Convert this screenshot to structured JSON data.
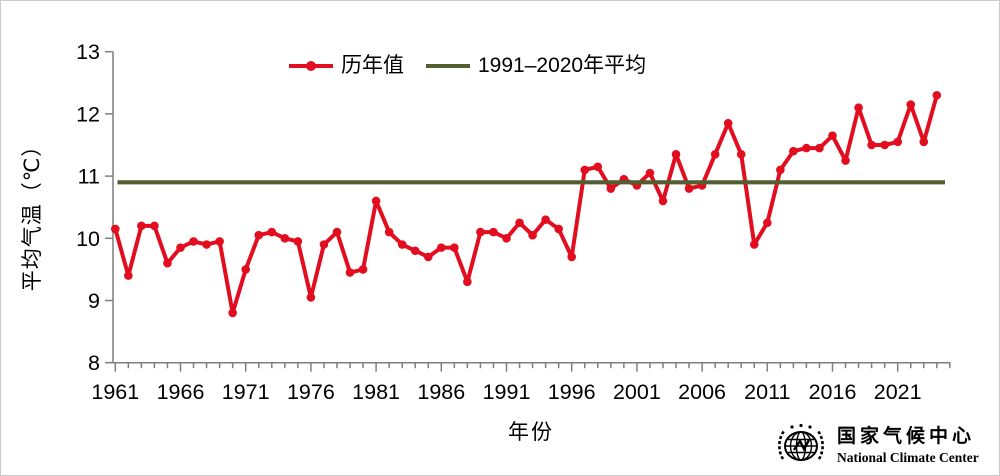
{
  "chart_data": {
    "type": "line",
    "title": "",
    "xlabel": "年份",
    "ylabel": "平均气温（℃）",
    "ylim": [
      8,
      13
    ],
    "yticks": [
      8,
      9,
      10,
      11,
      12,
      13
    ],
    "xticks": [
      1961,
      1966,
      1971,
      1976,
      1981,
      1986,
      1991,
      1996,
      2001,
      2006,
      2011,
      2016,
      2021
    ],
    "x_minor_tick_step": 1,
    "x_axis_end_year": 2025,
    "grid": "off",
    "legend_position": "top-center",
    "axis_color": "#7f7f7f",
    "x": [
      1961,
      1962,
      1963,
      1964,
      1965,
      1966,
      1967,
      1968,
      1969,
      1970,
      1971,
      1972,
      1973,
      1974,
      1975,
      1976,
      1977,
      1978,
      1979,
      1980,
      1981,
      1982,
      1983,
      1984,
      1985,
      1986,
      1987,
      1988,
      1989,
      1990,
      1991,
      1992,
      1993,
      1994,
      1995,
      1996,
      1997,
      1998,
      1999,
      2000,
      2001,
      2002,
      2003,
      2004,
      2005,
      2006,
      2007,
      2008,
      2009,
      2010,
      2011,
      2012,
      2013,
      2014,
      2015,
      2016,
      2017,
      2018,
      2019,
      2020,
      2021,
      2022,
      2023,
      2024
    ],
    "series": [
      {
        "name": "历年值",
        "color": "#e20d1f",
        "marker": "circle",
        "values": [
          10.15,
          9.4,
          10.2,
          10.2,
          9.6,
          9.85,
          9.95,
          9.9,
          9.95,
          8.8,
          9.5,
          10.05,
          10.1,
          10.0,
          9.95,
          9.05,
          9.9,
          10.1,
          9.45,
          9.5,
          10.6,
          10.1,
          9.9,
          9.8,
          9.7,
          9.85,
          9.85,
          9.3,
          10.1,
          10.1,
          10.0,
          10.25,
          10.05,
          10.3,
          10.15,
          9.7,
          11.1,
          11.15,
          10.8,
          10.95,
          10.85,
          11.05,
          10.6,
          11.35,
          10.8,
          10.85,
          11.35,
          11.85,
          11.35,
          9.9,
          10.25,
          11.1,
          11.4,
          11.45,
          11.45,
          11.65,
          11.25,
          12.1,
          11.5,
          11.5,
          11.55,
          12.15,
          11.55,
          12.3
        ]
      }
    ],
    "reference_line": {
      "label": "1991–2020年平均",
      "value": 10.9,
      "color": "#535d32"
    }
  },
  "legend": {
    "annual_label": "历年值",
    "average_label": "1991–2020年平均"
  },
  "axis_titles": {
    "y": "平均气温（℃）",
    "x": "年份"
  },
  "logo": {
    "name_cn": "国家气候中心",
    "name_en": "National Climate Center"
  }
}
